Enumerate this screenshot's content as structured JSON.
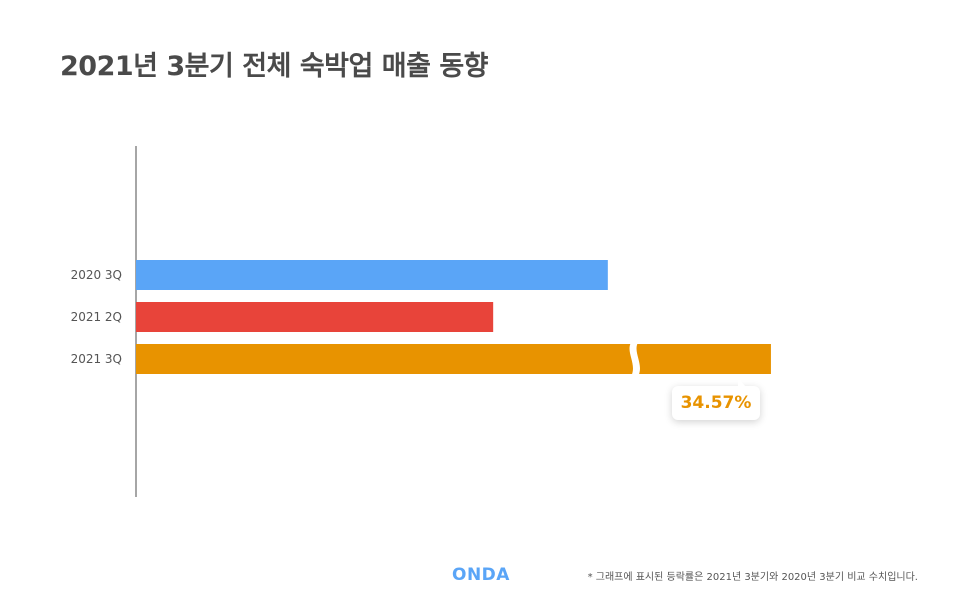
{
  "title": "2021년 3분기 전체 숙박업 매출 동향",
  "chart_data": {
    "type": "bar",
    "orientation": "horizontal",
    "categories": [
      "2020 3Q",
      "2021 2Q",
      "2021 3Q"
    ],
    "values": [
      100,
      75.7,
      134.57
    ],
    "bar_colors": [
      "#5aa5f7",
      "#e8443a",
      "#e89300"
    ],
    "axis_broken_on": "2021 3Q",
    "annotation": {
      "category": "2021 3Q",
      "text": "34.57%",
      "color": "#e89300"
    },
    "xlim": [
      0,
      142
    ],
    "grid": false,
    "legend": "none",
    "axis_color": "#888888"
  },
  "footer": {
    "logo": "ONDA",
    "logo_color": "#5aa5f7",
    "footnote": "* 그래프에 표시된 등락률은 2021년 3분기와 2020년 3분기 비교 수치입니다."
  }
}
